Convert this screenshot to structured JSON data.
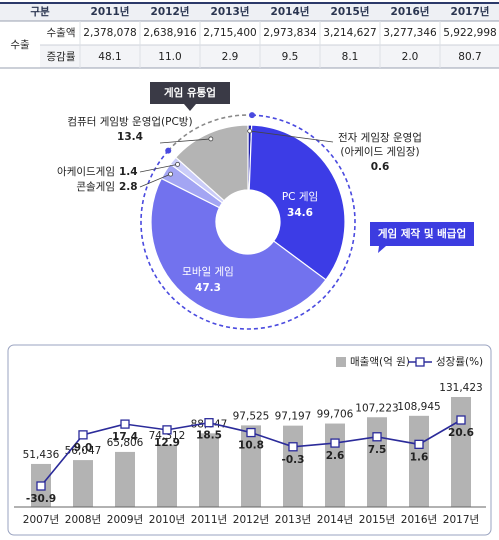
{
  "table": {
    "header": [
      "구분",
      "2011년",
      "2012년",
      "2013년",
      "2014년",
      "2015년",
      "2016년",
      "2017년"
    ],
    "group": "수출",
    "rows": [
      {
        "label": "수출액",
        "cells": [
          "2,378,078",
          "2,638,916",
          "2,715,400",
          "2,973,834",
          "3,214,627",
          "3,277,346",
          "5,922,998"
        ]
      },
      {
        "label": "증감률",
        "cells": [
          "48.1",
          "11.0",
          "2.9",
          "9.5",
          "8.1",
          "2.0",
          "80.7"
        ]
      }
    ]
  },
  "chart_data": [
    {
      "type": "pie",
      "categories": [
        [
          "전자 게임장 운영업",
          "(아케이드 게임장)"
        ],
        [
          "PC 게임"
        ],
        [
          "모바일 게임"
        ],
        [
          "콘솔게임"
        ],
        [
          "아케이드게임"
        ],
        [
          "컴퓨터 게임방 운영업(PC방)"
        ]
      ],
      "values": [
        0.6,
        34.6,
        47.3,
        2.8,
        1.4,
        13.4
      ],
      "colors": [
        "#1f1fa8",
        "#3c3ce6",
        "#7272ee",
        "#a3a5f3",
        "#caccf8",
        "#b4b4b4"
      ],
      "annotations": [
        "게임 유통업",
        "게임 제작 및 배급업"
      ]
    },
    {
      "type": "combo",
      "categories": [
        "2007년",
        "2008년",
        "2009년",
        "2010년",
        "2011년",
        "2012년",
        "2013년",
        "2014년",
        "2015년",
        "2016년",
        "2017년"
      ],
      "series": [
        {
          "name": "매출액(억 원)",
          "type": "bar",
          "color": "#b3b3b3",
          "values": [
            51436,
            56047,
            65806,
            74312,
            88047,
            97525,
            97197,
            99706,
            107223,
            108945,
            131423
          ],
          "value_labels": [
            "51,436",
            "56,047",
            "65,806",
            "74,312",
            "88,047",
            "97,525",
            "97,197",
            "99,706",
            "107,223",
            "108,945",
            "131,423"
          ]
        },
        {
          "name": "성장률(%)",
          "type": "line",
          "axis": "y2",
          "color": "#2b2b9a",
          "values": [
            -30.9,
            9.0,
            17.4,
            12.9,
            18.5,
            10.8,
            -0.3,
            2.6,
            7.5,
            1.6,
            20.6
          ],
          "value_labels": [
            "-30.9",
            "9.0",
            "17.4",
            "12.9",
            "18.5",
            "10.8",
            "-0.3",
            "2.6",
            "7.5",
            "1.6",
            "20.6"
          ]
        }
      ]
    }
  ]
}
